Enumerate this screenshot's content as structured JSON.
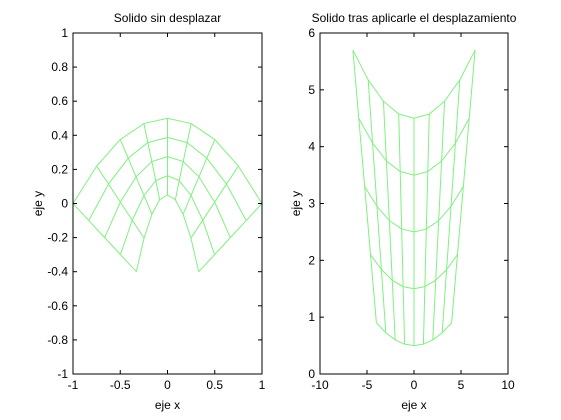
{
  "chart_data": [
    {
      "type": "mesh",
      "title": "Solido sin desplazar",
      "xlabel": "eje x",
      "ylabel": "eje y",
      "xlim": [
        -1,
        1
      ],
      "ylim": [
        -1,
        1
      ],
      "xticks": [
        -1,
        -0.5,
        0,
        0.5,
        1
      ],
      "yticks": [
        -1,
        -0.8,
        -0.6,
        -0.4,
        -0.2,
        0,
        0.2,
        0.4,
        0.6,
        0.8,
        1
      ],
      "color": "#80f080",
      "mesh": {
        "x": [
          [
            -0.33,
            -0.248,
            -0.165,
            -0.083,
            0,
            0.083,
            0.165,
            0.248,
            0.33
          ],
          [
            -0.498,
            -0.373,
            -0.249,
            -0.124,
            0,
            0.124,
            0.249,
            0.373,
            0.498
          ],
          [
            -0.665,
            -0.499,
            -0.333,
            -0.166,
            0,
            0.166,
            0.333,
            0.499,
            0.665
          ],
          [
            -0.833,
            -0.624,
            -0.416,
            -0.208,
            0,
            0.208,
            0.416,
            0.624,
            0.833
          ],
          [
            -1,
            -0.75,
            -0.5,
            -0.25,
            0,
            0.25,
            0.5,
            0.75,
            1
          ]
        ],
        "y": [
          [
            -0.4,
            -0.203,
            -0.063,
            0.022,
            0.05,
            0.022,
            -0.063,
            -0.203,
            -0.4
          ],
          [
            -0.3,
            -0.098,
            0.047,
            0.134,
            0.163,
            0.134,
            0.047,
            -0.098,
            -0.3
          ],
          [
            -0.2,
            0.008,
            0.156,
            0.246,
            0.275,
            0.246,
            0.156,
            0.008,
            -0.2
          ],
          [
            -0.1,
            0.114,
            0.266,
            0.357,
            0.388,
            0.357,
            0.266,
            0.114,
            -0.1
          ],
          [
            0,
            0.219,
            0.375,
            0.469,
            0.5,
            0.469,
            0.375,
            0.219,
            0
          ]
        ]
      }
    },
    {
      "type": "mesh",
      "title": "Solido tras aplicarle el desplazamiento",
      "xlabel": "eje x",
      "ylabel": "eje y",
      "xlim": [
        -10,
        10
      ],
      "ylim": [
        0,
        6
      ],
      "xticks": [
        -10,
        -5,
        0,
        5,
        10
      ],
      "yticks": [
        0,
        1,
        2,
        3,
        4,
        5,
        6
      ],
      "color": "#80f080",
      "mesh": {
        "x": [
          [
            -4,
            -3,
            -2,
            -1,
            0,
            1,
            2,
            3,
            4
          ],
          [
            -4.625,
            -3.469,
            -2.313,
            -1.156,
            0,
            1.156,
            2.313,
            3.469,
            4.625
          ],
          [
            -5.25,
            -3.938,
            -2.625,
            -1.313,
            0,
            1.313,
            2.625,
            3.938,
            5.25
          ],
          [
            -5.875,
            -4.406,
            -2.938,
            -1.469,
            0,
            1.469,
            2.938,
            4.406,
            5.875
          ],
          [
            -6.5,
            -4.875,
            -3.25,
            -1.625,
            0,
            1.625,
            3.25,
            4.875,
            6.5
          ]
        ],
        "y": [
          [
            0.9,
            0.725,
            0.6,
            0.525,
            0.5,
            0.525,
            0.6,
            0.725,
            0.9
          ],
          [
            2.1,
            1.838,
            1.65,
            1.538,
            1.5,
            1.538,
            1.65,
            1.838,
            2.1
          ],
          [
            3.3,
            2.95,
            2.7,
            2.55,
            2.5,
            2.55,
            2.7,
            2.95,
            3.3
          ],
          [
            4.5,
            4.063,
            3.75,
            3.563,
            3.5,
            3.563,
            3.75,
            4.063,
            4.5
          ],
          [
            5.7,
            5.175,
            4.8,
            4.575,
            4.5,
            4.575,
            4.8,
            5.175,
            5.7
          ]
        ]
      }
    }
  ]
}
